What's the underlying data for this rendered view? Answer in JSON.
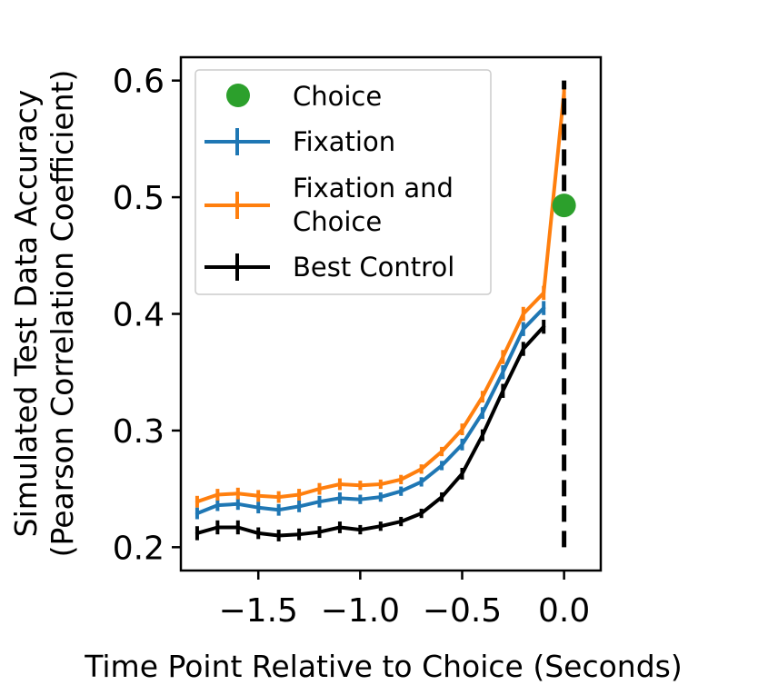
{
  "chart_data": {
    "type": "line",
    "xlabel": "Time Point Relative to Choice (Seconds)",
    "ylabel_lines": [
      "Simulated Test Data Accuracy",
      "(Pearson Correlation Coefficient)"
    ],
    "xlim": [
      -1.88,
      0.18
    ],
    "ylim": [
      0.18,
      0.62
    ],
    "xticks": [
      -1.5,
      -1.0,
      -0.5,
      0.0
    ],
    "xtick_labels": [
      "−1.5",
      "−1.0",
      "−0.5",
      "0.0"
    ],
    "yticks": [
      0.2,
      0.3,
      0.4,
      0.5,
      0.6
    ],
    "ytick_labels": [
      "0.2",
      "0.3",
      "0.4",
      "0.5",
      "0.6"
    ],
    "grid": false,
    "legend_position": "upper-left",
    "x": [
      -1.8,
      -1.7,
      -1.6,
      -1.5,
      -1.4,
      -1.3,
      -1.2,
      -1.1,
      -1.0,
      -0.9,
      -0.8,
      -0.7,
      -0.6,
      -0.5,
      -0.4,
      -0.3,
      -0.2,
      -0.1
    ],
    "series": [
      {
        "name": "Fixation",
        "color": "#1f77b4",
        "values": [
          0.229,
          0.236,
          0.237,
          0.234,
          0.232,
          0.235,
          0.239,
          0.242,
          0.241,
          0.243,
          0.248,
          0.256,
          0.27,
          0.288,
          0.315,
          0.35,
          0.387,
          0.405
        ],
        "errors": [
          0.005,
          0.005,
          0.005,
          0.005,
          0.005,
          0.005,
          0.005,
          0.005,
          0.004,
          0.004,
          0.004,
          0.004,
          0.004,
          0.005,
          0.005,
          0.006,
          0.006,
          0.006
        ]
      },
      {
        "name": "Fixation and Choice",
        "label_lines": [
          "Fixation and",
          "Choice"
        ],
        "color": "#ff7f0e",
        "x": [
          -1.8,
          -1.7,
          -1.6,
          -1.5,
          -1.4,
          -1.3,
          -1.2,
          -1.1,
          -1.0,
          -0.9,
          -0.8,
          -0.7,
          -0.6,
          -0.5,
          -0.4,
          -0.3,
          -0.2,
          -0.1,
          0.0
        ],
        "values": [
          0.239,
          0.245,
          0.246,
          0.244,
          0.243,
          0.245,
          0.25,
          0.254,
          0.253,
          0.254,
          0.258,
          0.267,
          0.282,
          0.301,
          0.329,
          0.363,
          0.4,
          0.418,
          0.59
        ],
        "errors": [
          0.005,
          0.005,
          0.005,
          0.005,
          0.005,
          0.005,
          0.005,
          0.005,
          0.004,
          0.004,
          0.004,
          0.004,
          0.004,
          0.005,
          0.005,
          0.006,
          0.006,
          0.006,
          0.006
        ]
      },
      {
        "name": "Best Control",
        "color": "#000000",
        "values": [
          0.212,
          0.217,
          0.217,
          0.212,
          0.21,
          0.211,
          0.213,
          0.217,
          0.215,
          0.218,
          0.222,
          0.229,
          0.243,
          0.263,
          0.296,
          0.334,
          0.37,
          0.389
        ],
        "errors": [
          0.006,
          0.006,
          0.006,
          0.005,
          0.005,
          0.005,
          0.005,
          0.005,
          0.004,
          0.004,
          0.004,
          0.004,
          0.004,
          0.005,
          0.005,
          0.006,
          0.006,
          0.006
        ]
      }
    ],
    "choice_point": {
      "name": "Choice",
      "x": 0.0,
      "y": 0.493,
      "color": "#2ca02c"
    },
    "vline": {
      "x": 0.0,
      "y_range": [
        0.2,
        0.6
      ],
      "style": "dashed",
      "color": "#000000"
    }
  }
}
